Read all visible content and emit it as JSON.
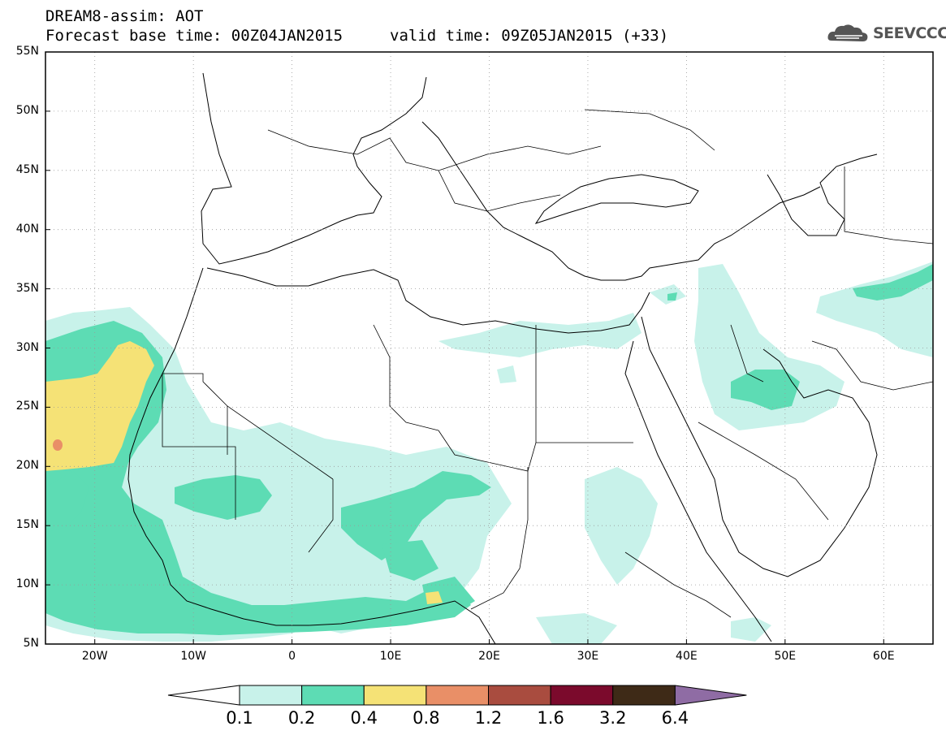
{
  "header": {
    "title": "DREAM8-assim: AOT",
    "base_time": "Forecast base time: 00Z04JAN2015",
    "valid_time": "valid time: 09Z05JAN2015 (+33)",
    "logo_text": "SEEVCCC"
  },
  "map": {
    "lat_ticks": [
      "55N",
      "50N",
      "45N",
      "40N",
      "35N",
      "30N",
      "25N",
      "20N",
      "15N",
      "10N",
      "5N"
    ],
    "lon_ticks": [
      "20W",
      "10W",
      "0",
      "10E",
      "20E",
      "30E",
      "40E",
      "50E",
      "60E"
    ],
    "extent": {
      "lon_min": -25,
      "lon_max": 65,
      "lat_min": 5,
      "lat_max": 55
    },
    "grid": "dotted"
  },
  "colorbar": {
    "labels": [
      "0.1",
      "0.2",
      "0.4",
      "0.8",
      "1.2",
      "1.6",
      "3.2",
      "6.4"
    ],
    "colors": [
      "#c8f2ea",
      "#5ddcb4",
      "#f5e276",
      "#e98f67",
      "#a94c3f",
      "#7b0a2c",
      "#3e2a17",
      "#8f6ca4"
    ]
  }
}
